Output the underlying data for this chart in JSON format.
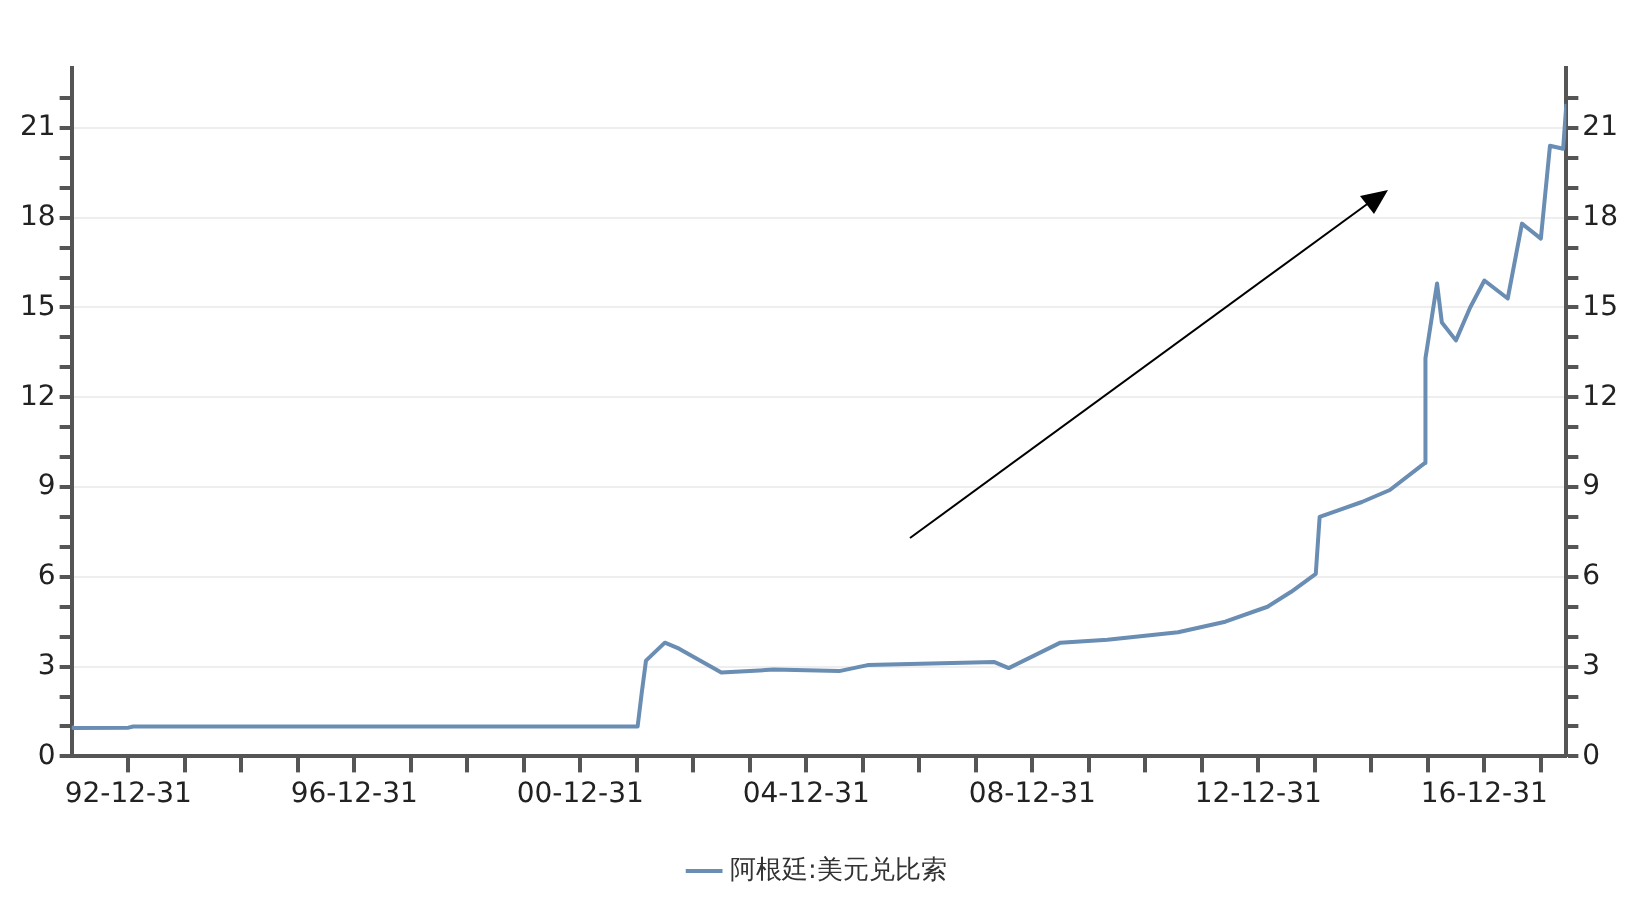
{
  "chart_data": {
    "type": "line",
    "x": [
      "1992-01-01",
      "1992-01-10",
      "1993-01-01",
      "1993-02-01",
      "2002-01-06",
      "2002-02-01",
      "2002-03-01",
      "2002-07-01",
      "2002-10-01",
      "2003-07-01",
      "2004-06-01",
      "2005-08-01",
      "2006-02-01",
      "2008-05-01",
      "2008-08-01",
      "2009-07-01",
      "2010-05-01",
      "2011-08-01",
      "2012-06-01",
      "2013-03-01",
      "2013-08-01",
      "2014-01-07",
      "2014-02-01",
      "2014-11-01",
      "2015-05-01",
      "2015-12-12",
      "2015-12-17",
      "2016-01-01",
      "2016-03-01",
      "2016-04-01",
      "2016-07-01",
      "2016-10-01",
      "2017-01-01",
      "2017-06-01",
      "2017-09-01",
      "2018-01-01",
      "2018-03-01",
      "2018-05-25",
      "2018-06-15"
    ],
    "series": [
      {
        "name": "阿根廷:美元兑比索",
        "color": "#6a8db3",
        "values": [
          1.0,
          0.95,
          0.96,
          1.0,
          1.0,
          2.1,
          3.2,
          3.8,
          3.6,
          2.8,
          2.9,
          2.85,
          3.05,
          3.15,
          2.95,
          3.8,
          3.9,
          4.15,
          4.5,
          5.0,
          5.5,
          6.1,
          8.0,
          8.5,
          8.9,
          9.8,
          13.3,
          13.8,
          15.8,
          14.5,
          13.9,
          15.0,
          15.9,
          15.3,
          17.8,
          17.3,
          20.4,
          20.3,
          21.8
        ]
      }
    ],
    "xlim": [
      "1991-12-31",
      "2018-06-15"
    ],
    "xticks": [
      {
        "value": "1992-12-31",
        "label": "92-12-31"
      },
      {
        "value": "1993-12-31",
        "label": null
      },
      {
        "value": "1994-12-31",
        "label": null
      },
      {
        "value": "1995-12-31",
        "label": null
      },
      {
        "value": "1996-12-31",
        "label": "96-12-31"
      },
      {
        "value": "1997-12-31",
        "label": null
      },
      {
        "value": "1998-12-31",
        "label": null
      },
      {
        "value": "1999-12-31",
        "label": null
      },
      {
        "value": "2000-12-31",
        "label": "00-12-31"
      },
      {
        "value": "2001-12-31",
        "label": null
      },
      {
        "value": "2002-12-31",
        "label": null
      },
      {
        "value": "2003-12-31",
        "label": null
      },
      {
        "value": "2004-12-31",
        "label": "04-12-31"
      },
      {
        "value": "2005-12-31",
        "label": null
      },
      {
        "value": "2006-12-31",
        "label": null
      },
      {
        "value": "2007-12-31",
        "label": null
      },
      {
        "value": "2008-12-31",
        "label": "08-12-31"
      },
      {
        "value": "2009-12-31",
        "label": null
      },
      {
        "value": "2010-12-31",
        "label": null
      },
      {
        "value": "2011-12-31",
        "label": null
      },
      {
        "value": "2012-12-31",
        "label": "12-12-31"
      },
      {
        "value": "2013-12-31",
        "label": null
      },
      {
        "value": "2014-12-31",
        "label": null
      },
      {
        "value": "2015-12-31",
        "label": null
      },
      {
        "value": "2016-12-31",
        "label": "16-12-31"
      },
      {
        "value": "2017-12-31",
        "label": null
      }
    ],
    "ylim": [
      0,
      23
    ],
    "yticks": [
      0,
      {
        "value": 1,
        "label": null
      },
      {
        "value": 2,
        "label": null
      },
      3,
      {
        "value": 4,
        "label": null
      },
      {
        "value": 5,
        "label": null
      },
      6,
      {
        "value": 7,
        "label": null
      },
      {
        "value": 8,
        "label": null
      },
      9,
      {
        "value": 10,
        "label": null
      },
      {
        "value": 11,
        "label": null
      },
      12,
      {
        "value": 13,
        "label": null
      },
      {
        "value": 14,
        "label": null
      },
      15,
      {
        "value": 16,
        "label": null
      },
      {
        "value": 17,
        "label": null
      },
      18,
      {
        "value": 19,
        "label": null
      },
      {
        "value": 20,
        "label": null
      },
      21,
      {
        "value": 22,
        "label": null
      }
    ],
    "y2lim": [
      0,
      23
    ],
    "y2ticks": [
      0,
      {
        "value": 1,
        "label": null
      },
      {
        "value": 2,
        "label": null
      },
      3,
      {
        "value": 4,
        "label": null
      },
      {
        "value": 5,
        "label": null
      },
      6,
      {
        "value": 7,
        "label": null
      },
      {
        "value": 8,
        "label": null
      },
      9,
      {
        "value": 10,
        "label": null
      },
      {
        "value": 11,
        "label": null
      },
      12,
      {
        "value": 13,
        "label": null
      },
      {
        "value": 14,
        "label": null
      },
      15,
      {
        "value": 16,
        "label": null
      },
      {
        "value": 17,
        "label": null
      },
      18,
      {
        "value": 19,
        "label": null
      },
      {
        "value": 20,
        "label": null
      },
      21,
      {
        "value": 22,
        "label": null
      }
    ],
    "grid": "y",
    "legend": "bottom",
    "marker": "none",
    "line_style": "solid"
  }
}
